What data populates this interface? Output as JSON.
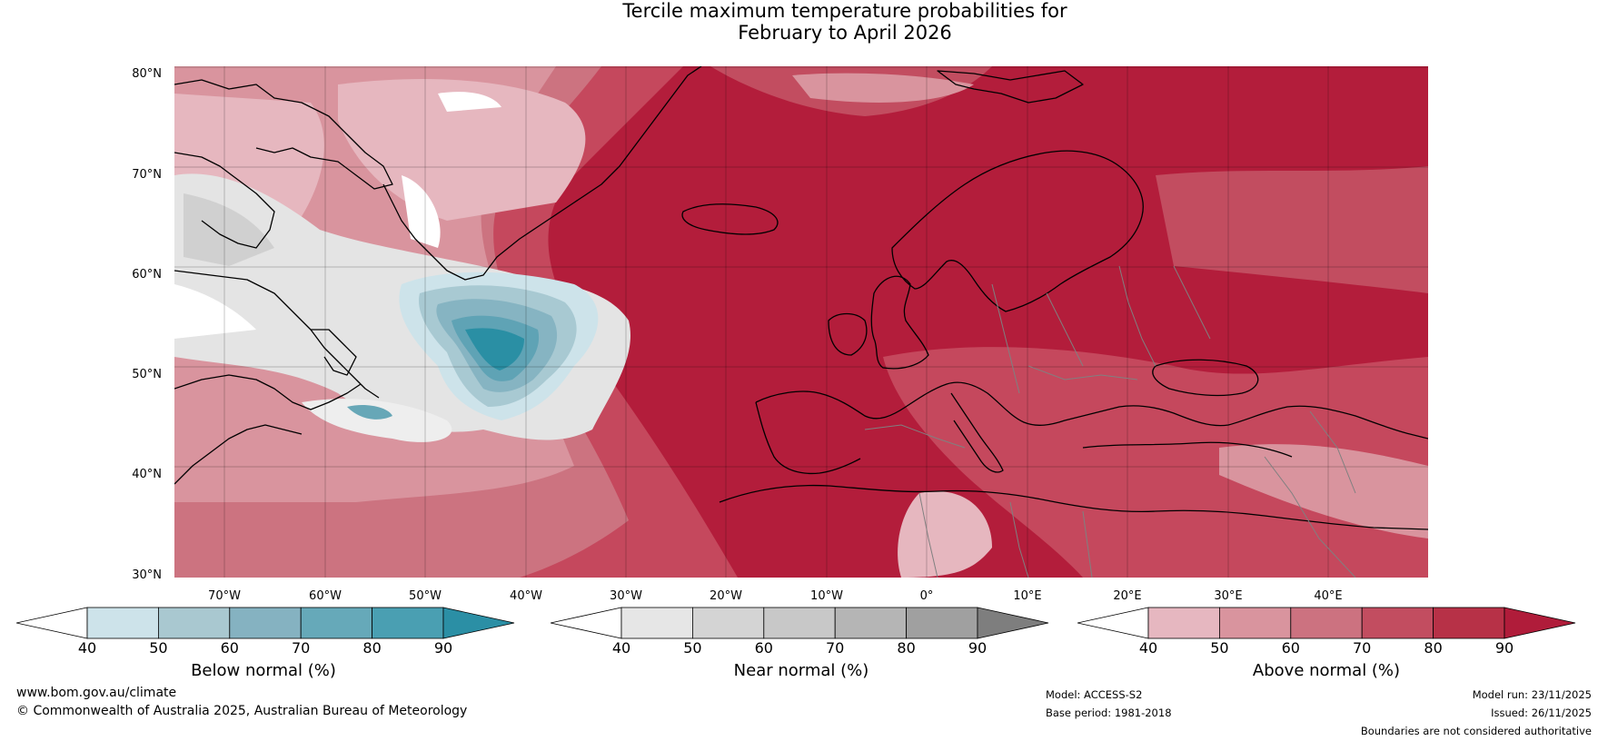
{
  "title": {
    "line1": "Tercile maximum temperature probabilities for",
    "line2": "February to April 2026"
  },
  "map": {
    "lat_labels": [
      "80°N",
      "70°N",
      "60°N",
      "50°N",
      "40°N",
      "30°N"
    ],
    "lon_labels": [
      "70°W",
      "60°W",
      "50°W",
      "40°W",
      "30°W",
      "20°W",
      "10°W",
      "0°",
      "10°E",
      "20°E",
      "30°E",
      "40°E"
    ],
    "colors": {
      "above": [
        "#e6b7bf",
        "#d9949e",
        "#cc7380",
        "#c24d60",
        "#b42b43",
        "#b01c3a"
      ],
      "below": [
        "#cfe4ea",
        "#a8c9d2",
        "#86b4c2",
        "#67a7b7",
        "#4a9db1",
        "#2a8fa4"
      ],
      "near": [
        "#e6e6e6",
        "#d4d4d4",
        "#c4c4c4"
      ],
      "land_outline": "#000000",
      "border": "#808080"
    }
  },
  "colorbars": [
    {
      "label": "Below normal (%)",
      "ticks": [
        "40",
        "50",
        "60",
        "70",
        "80",
        "90"
      ],
      "colors": [
        "#ffffff",
        "#cde3ea",
        "#a9c8d0",
        "#85b2c1",
        "#66a9b9",
        "#4a9fb2",
        "#2b8fa5"
      ]
    },
    {
      "label": "Near normal (%)",
      "ticks": [
        "40",
        "50",
        "60",
        "70",
        "80",
        "90"
      ],
      "colors": [
        "#ffffff",
        "#e6e6e6",
        "#d4d4d4",
        "#c8c8c8",
        "#b5b5b5",
        "#a0a0a0",
        "#7e7e7e"
      ]
    },
    {
      "label": "Above normal (%)",
      "ticks": [
        "40",
        "50",
        "60",
        "70",
        "80",
        "90"
      ],
      "colors": [
        "#ffffff",
        "#e6b7c0",
        "#d9949e",
        "#cc7280",
        "#c24d60",
        "#b73147",
        "#b01c3a"
      ]
    }
  ],
  "footer": {
    "website": "www.bom.gov.au/climate",
    "copyright": "© Commonwealth of Australia 2025, Australian Bureau of Meteorology",
    "model": "Model: ACCESS-S2",
    "base_period": "Base period: 1981-2018",
    "model_run": "Model run: 23/11/2025",
    "issued": "Issued: 26/11/2025",
    "disclaimer": "Boundaries are not considered authoritative"
  }
}
